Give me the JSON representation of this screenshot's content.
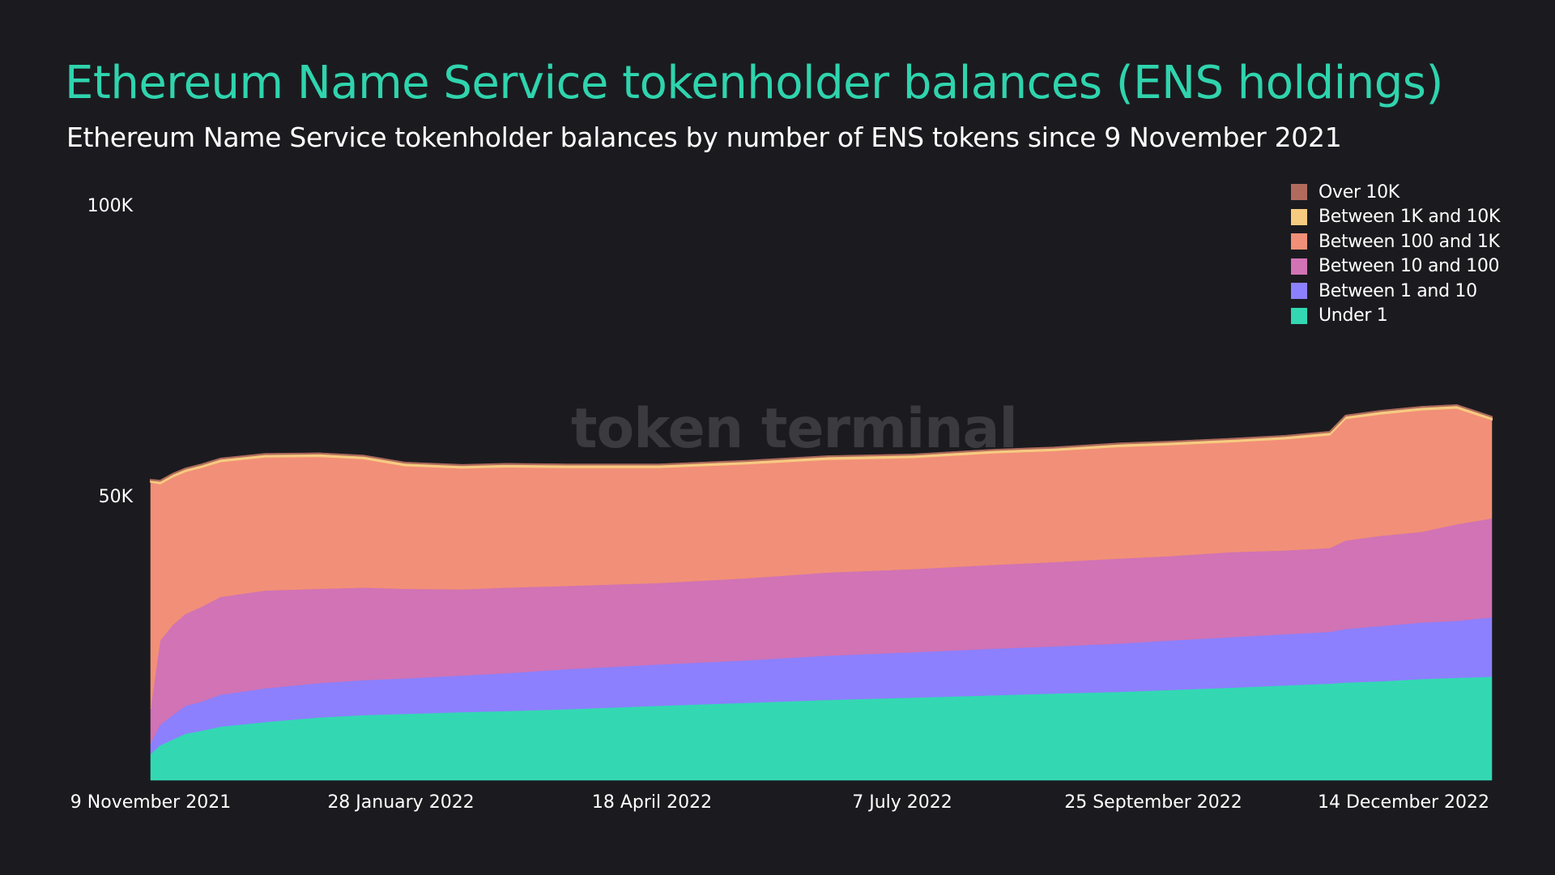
{
  "title": "Ethereum Name Service tokenholder balances (ENS holdings)",
  "subtitle": "Ethereum Name Service tokenholder balances by number of ENS tokens since 9 November 2021",
  "watermark": "token terminal_",
  "chart_data": {
    "type": "area",
    "stacked": true,
    "legend_position": "top-right",
    "grid": false,
    "ylim": [
      0,
      100000
    ],
    "y_ticks": [
      {
        "value": 50000,
        "label": "50K"
      },
      {
        "value": 100000,
        "label": "100K"
      }
    ],
    "x_ticks": [
      "9 November 2021",
      "28 January 2022",
      "18 April 2022",
      "7 July 2022",
      "25 September 2022",
      "14 December 2022"
    ],
    "x": [
      "2021-11-09",
      "2021-11-12",
      "2021-11-16",
      "2021-11-20",
      "2021-11-25",
      "2021-12-01",
      "2021-12-15",
      "2022-01-01",
      "2022-01-15",
      "2022-01-28",
      "2022-02-15",
      "2022-03-01",
      "2022-03-20",
      "2022-04-18",
      "2022-05-15",
      "2022-06-10",
      "2022-07-07",
      "2022-08-01",
      "2022-08-20",
      "2022-09-10",
      "2022-09-25",
      "2022-10-15",
      "2022-11-01",
      "2022-11-15",
      "2022-11-20",
      "2022-12-01",
      "2022-12-14",
      "2022-12-25",
      "2023-01-05"
    ],
    "series": [
      {
        "name": "Under 1",
        "color": "#33d8b3",
        "values": [
          4500,
          6000,
          7000,
          8000,
          8500,
          9200,
          10000,
          10800,
          11200,
          11400,
          11700,
          11900,
          12200,
          12800,
          13300,
          13800,
          14200,
          14600,
          14900,
          15200,
          15500,
          15900,
          16300,
          16600,
          16800,
          17000,
          17400,
          17600,
          17800
        ]
      },
      {
        "name": "Between 1 and 10",
        "color": "#8c80ff",
        "values": [
          1800,
          3500,
          4200,
          4800,
          5000,
          5500,
          5800,
          5900,
          6000,
          6100,
          6300,
          6500,
          6900,
          7100,
          7300,
          7600,
          7800,
          8000,
          8100,
          8300,
          8500,
          8700,
          8800,
          8900,
          9200,
          9500,
          9700,
          9800,
          10200
        ]
      },
      {
        "name": "Between 10 and 100",
        "color": "#d173b5",
        "values": [
          6000,
          14500,
          15500,
          15800,
          16300,
          16800,
          16800,
          16200,
          15900,
          15400,
          14800,
          14700,
          14300,
          14000,
          14100,
          14300,
          14300,
          14400,
          14500,
          14600,
          14500,
          14600,
          14400,
          14400,
          15200,
          15500,
          15600,
          16600,
          17000
        ]
      },
      {
        "name": "Between 100 and 1K",
        "color": "#f28f78",
        "values": [
          39000,
          27000,
          25500,
          24500,
          24000,
          23300,
          23000,
          22800,
          22200,
          21200,
          20900,
          20800,
          20400,
          19900,
          19700,
          19500,
          19200,
          19300,
          19200,
          19300,
          19200,
          19000,
          19200,
          19500,
          21000,
          21000,
          21000,
          20000,
          17000
        ]
      },
      {
        "name": "Between 1K and 10K",
        "color": "#f7cb80",
        "values": [
          300,
          450,
          450,
          450,
          450,
          450,
          450,
          450,
          450,
          450,
          450,
          450,
          450,
          450,
          450,
          450,
          450,
          450,
          450,
          450,
          450,
          450,
          450,
          450,
          450,
          450,
          450,
          450,
          450
        ]
      },
      {
        "name": "Over 10K",
        "color": "#b06b5d",
        "values": [
          30,
          40,
          40,
          40,
          40,
          40,
          40,
          40,
          40,
          40,
          40,
          40,
          40,
          40,
          40,
          40,
          40,
          40,
          40,
          40,
          40,
          40,
          40,
          40,
          40,
          40,
          40,
          40,
          40
        ]
      }
    ]
  }
}
